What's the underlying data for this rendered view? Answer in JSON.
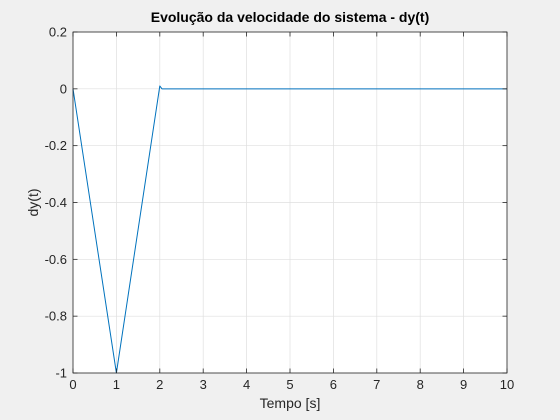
{
  "chart_data": {
    "type": "line",
    "title": "Evolução da velocidade do sistema - dy(t)",
    "xlabel": "Tempo [s]",
    "ylabel": "dy(t)",
    "xlim": [
      0,
      10
    ],
    "ylim": [
      -1,
      0.2
    ],
    "xticks": [
      0,
      1,
      2,
      3,
      4,
      5,
      6,
      7,
      8,
      9,
      10
    ],
    "xtick_labels": [
      "0",
      "1",
      "2",
      "3",
      "4",
      "5",
      "6",
      "7",
      "8",
      "9",
      "10"
    ],
    "yticks": [
      -1,
      -0.8,
      -0.6,
      -0.4,
      -0.2,
      0,
      0.2
    ],
    "ytick_labels": [
      "-1",
      "-0.8",
      "-0.6",
      "-0.4",
      "-0.2",
      "0",
      "0.2"
    ],
    "grid": true,
    "series": [
      {
        "color": "#0072BD",
        "x": [
          0,
          1,
          2,
          2.05,
          10
        ],
        "y": [
          0,
          -1,
          0.01,
          0,
          0
        ]
      }
    ]
  }
}
